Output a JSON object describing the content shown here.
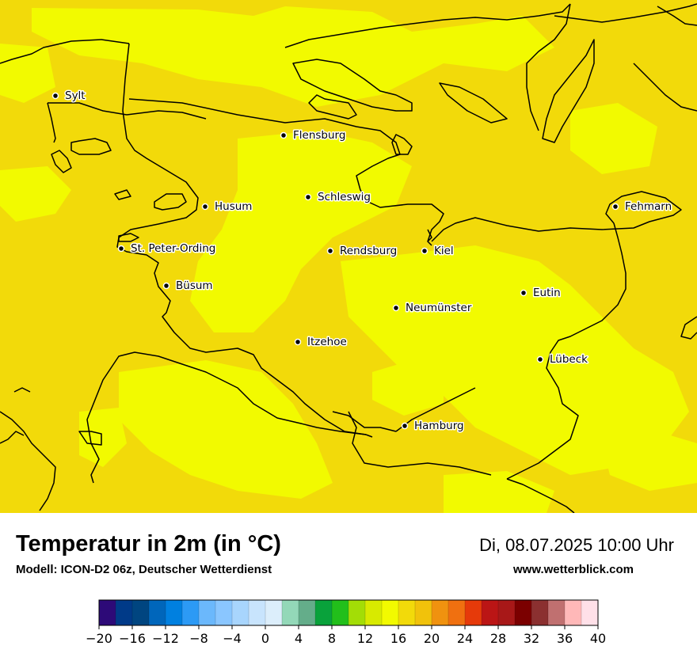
{
  "title": "Temperatur in 2m (in °C)",
  "subtitle": "Modell: ICON-D2 06z, Deutscher Wetterdienst",
  "datetime": "Di, 08.07.2025 10:00 Uhr",
  "website": "www.wetterblick.com",
  "colors": {
    "base_field": "#f2da0a",
    "warm_patch": "#f2fa00",
    "coastline": "#000000"
  },
  "cities": [
    {
      "name": "Sylt"
    },
    {
      "name": "Flensburg"
    },
    {
      "name": "Schleswig"
    },
    {
      "name": "Husum"
    },
    {
      "name": "Fehmarn"
    },
    {
      "name": "St. Peter-Ording"
    },
    {
      "name": "Rendsburg"
    },
    {
      "name": "Kiel"
    },
    {
      "name": "Büsum"
    },
    {
      "name": "Eutin"
    },
    {
      "name": "Neumünster"
    },
    {
      "name": "Itzehoe"
    },
    {
      "name": "Lübeck"
    },
    {
      "name": "Hamburg"
    }
  ],
  "legend": {
    "min": -20,
    "max": 40,
    "step": 2,
    "tick_labels": [
      "−20",
      "−16",
      "−12",
      "−8",
      "−4",
      "0",
      "4",
      "8",
      "12",
      "16",
      "20",
      "24",
      "28",
      "32",
      "36",
      "40"
    ],
    "colors": [
      "#2d0a78",
      "#003a88",
      "#004580",
      "#0066bb",
      "#0080e0",
      "#2c9af5",
      "#6bb8fc",
      "#8ac6ff",
      "#a8d5fd",
      "#c8e4fd",
      "#dceefb",
      "#93d8b8",
      "#64ad8a",
      "#09a23b",
      "#22bf1b",
      "#a3dd06",
      "#d8ea00",
      "#f2fa00",
      "#f2da0a",
      "#f1c20b",
      "#f0920f",
      "#f07010",
      "#e63a0a",
      "#bb1515",
      "#a81818",
      "#7b0000",
      "#8b3030",
      "#c07070",
      "#ffb8b8",
      "#ffe0e8"
    ]
  }
}
